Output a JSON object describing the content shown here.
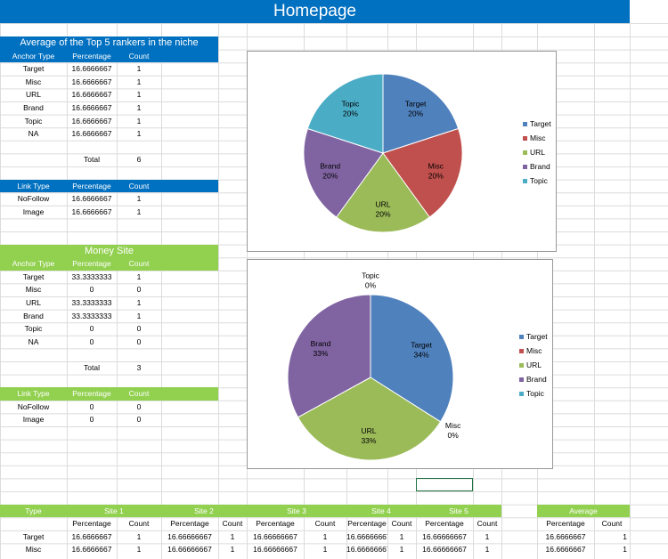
{
  "banner_title": "Homepage",
  "section1": {
    "title": "Average of the Top 5 rankers in the niche",
    "headers": [
      "Anchor Type",
      "Percentage",
      "Count"
    ],
    "rows": [
      [
        "Target",
        "16.6666667",
        "1"
      ],
      [
        "Misc",
        "16.6666667",
        "1"
      ],
      [
        "URL",
        "16.6666667",
        "1"
      ],
      [
        "Brand",
        "16.6666667",
        "1"
      ],
      [
        "Topic",
        "16.6666667",
        "1"
      ],
      [
        "NA",
        "16.6666667",
        "1"
      ]
    ],
    "total_label": "Total",
    "total_value": "6",
    "link_headers": [
      "Link Type",
      "Percentage",
      "Count"
    ],
    "link_rows": [
      [
        "NoFollow",
        "16.6666667",
        "1"
      ],
      [
        "Image",
        "16.6666667",
        "1"
      ]
    ]
  },
  "section2": {
    "title": "Money Site",
    "headers": [
      "Anchor Type",
      "Percentage",
      "Count"
    ],
    "rows": [
      [
        "Target",
        "33.3333333",
        "1"
      ],
      [
        "Misc",
        "0",
        "0"
      ],
      [
        "URL",
        "33.3333333",
        "1"
      ],
      [
        "Brand",
        "33.3333333",
        "1"
      ],
      [
        "Topic",
        "0",
        "0"
      ],
      [
        "NA",
        "0",
        "0"
      ]
    ],
    "total_label": "Total",
    "total_value": "3",
    "link_headers": [
      "Link Type",
      "Percentage",
      "Count"
    ],
    "link_rows": [
      [
        "NoFollow",
        "0",
        "0"
      ],
      [
        "Image",
        "0",
        "0"
      ]
    ]
  },
  "bottom": {
    "type_label": "Type",
    "sites": [
      "Site 1",
      "Site 2",
      "Site 3",
      "Site 4",
      "Site 5"
    ],
    "average_label": "Average",
    "sub_percentage": "Percentage",
    "sub_count": "Count",
    "rows": [
      {
        "label": "Target",
        "sites": [
          [
            "16.6666667",
            "1"
          ],
          [
            "16.66666667",
            "1"
          ],
          [
            "16.66666667",
            "1"
          ],
          [
            "16.66666667",
            "1"
          ],
          [
            "16.66666667",
            "1"
          ]
        ],
        "avg": [
          "16.6666667",
          "1"
        ]
      },
      {
        "label": "Misc",
        "sites": [
          [
            "16.6666667",
            "1"
          ],
          [
            "16.66666667",
            "1"
          ],
          [
            "16.66666667",
            "1"
          ],
          [
            "16.66666667",
            "1"
          ],
          [
            "16.66666667",
            "1"
          ]
        ],
        "avg": [
          "16.6666667",
          "1"
        ]
      }
    ]
  },
  "colors": {
    "banner": "#0070C0",
    "green_header": "#92D050",
    "Target": "#4F81BD",
    "Misc": "#C0504D",
    "URL": "#9BBB59",
    "Brand": "#8064A2",
    "Topic": "#4BACC6"
  },
  "chart_data": [
    {
      "type": "pie",
      "title": "",
      "categories": [
        "Target",
        "Misc",
        "URL",
        "Brand",
        "Topic"
      ],
      "values": [
        20,
        20,
        20,
        20,
        20
      ],
      "data_labels": [
        "20%",
        "20%",
        "20%",
        "20%",
        "20%"
      ],
      "legend": "right"
    },
    {
      "type": "pie",
      "title": "",
      "categories": [
        "Target",
        "Misc",
        "URL",
        "Brand",
        "Topic"
      ],
      "values": [
        34,
        0,
        33,
        33,
        0
      ],
      "data_labels": [
        "34%",
        "0%",
        "33%",
        "33%",
        "0%"
      ],
      "legend": "right"
    }
  ]
}
